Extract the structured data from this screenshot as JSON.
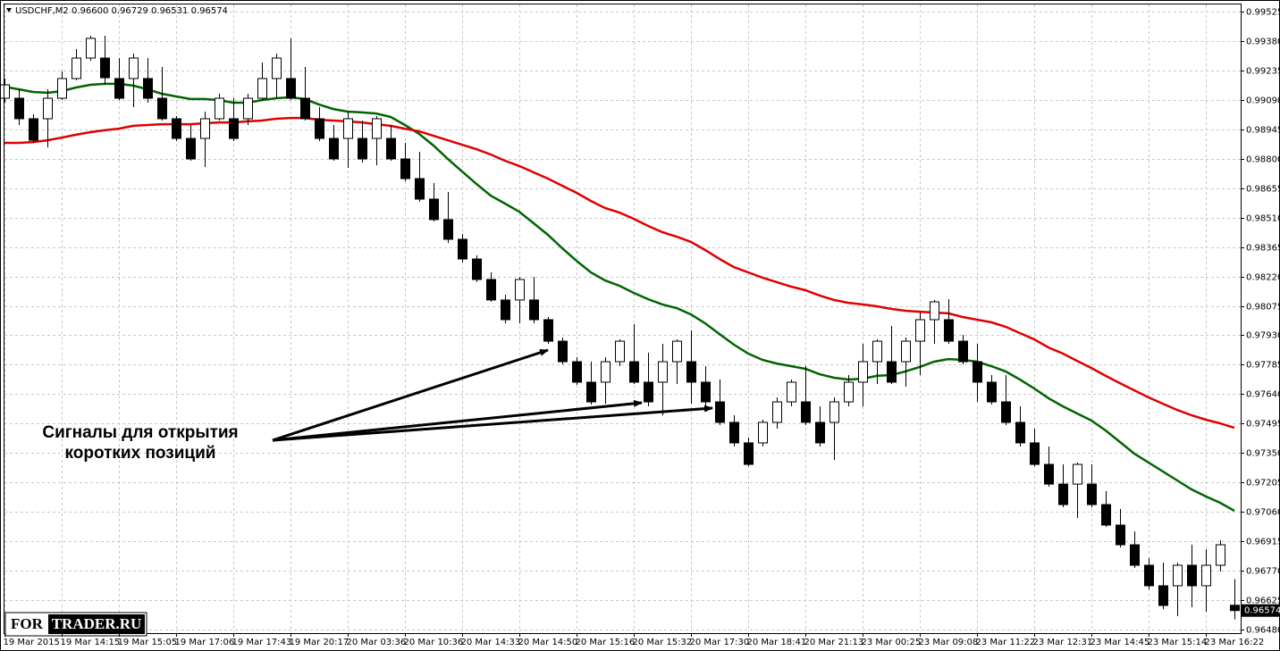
{
  "chart_data": {
    "type": "candlestick",
    "title": "USDCHF,M2  0.96600 0.96729 0.96531 0.96574",
    "categories": [
      "19 Mar 2015",
      null,
      null,
      null,
      "19 Mar 14:15",
      null,
      null,
      null,
      "19 Mar 15:05",
      null,
      null,
      null,
      "19 Mar 17:06",
      null,
      null,
      null,
      "19 Mar 17:43",
      null,
      null,
      null,
      "19 Mar 20:17",
      null,
      null,
      null,
      "20 Mar 03:36",
      null,
      null,
      null,
      "20 Mar 10:36",
      null,
      null,
      null,
      "20 Mar 14:33",
      null,
      null,
      null,
      "20 Mar 14:50",
      null,
      null,
      null,
      "20 Mar 15:16",
      null,
      null,
      null,
      "20 Mar 15:32",
      null,
      null,
      null,
      "20 Mar 17:30",
      null,
      null,
      null,
      "20 Mar 18:41",
      null,
      null,
      null,
      "20 Mar 21:13",
      null,
      null,
      null,
      "23 Mar 00:25",
      null,
      null,
      null,
      "23 Mar 09:08",
      null,
      null,
      null,
      "23 Mar 11:22",
      null,
      null,
      null,
      "23 Mar 12:31",
      null,
      null,
      null,
      "23 Mar 14:45",
      null,
      null,
      null,
      "23 Mar 15:14",
      null,
      null,
      null,
      "23 Mar 16:22",
      null,
      null
    ],
    "open": [
      0.99098,
      0.99098,
      0.98997,
      0.98997,
      0.99098,
      0.99195,
      0.99296,
      0.99296,
      0.99195,
      0.99195,
      0.99195,
      0.99098,
      0.98997,
      0.989,
      0.989,
      0.98997,
      0.98997,
      0.98997,
      0.99098,
      0.99195,
      0.99195,
      0.99098,
      0.98997,
      0.989,
      0.989,
      0.989,
      0.989,
      0.989,
      0.98799,
      0.98702,
      0.98601,
      0.985,
      0.98403,
      0.98306,
      0.98205,
      0.98104,
      0.98104,
      0.98104,
      0.98007,
      0.97901,
      0.978,
      0.97699,
      0.97699,
      0.978,
      0.978,
      0.97699,
      0.97699,
      0.978,
      0.978,
      0.97699,
      0.97602,
      0.97501,
      0.974,
      0.974,
      0.97501,
      0.97602,
      0.97602,
      0.97501,
      0.97501,
      0.97602,
      0.97699,
      0.978,
      0.978,
      0.978,
      0.97901,
      0.98007,
      0.98007,
      0.97901,
      0.978,
      0.97699,
      0.97602,
      0.97501,
      0.974,
      0.97294,
      0.97197,
      0.97197,
      0.97197,
      0.97096,
      0.96995,
      0.96898,
      0.96797,
      0.96696,
      0.96696,
      0.96797,
      0.96696,
      0.96797,
      0.966
    ],
    "high": [
      0.99195,
      0.99142,
      0.99019,
      0.99142,
      0.9923,
      0.9934,
      0.99406,
      0.99406,
      0.99296,
      0.99318,
      0.99296,
      0.99252,
      0.9901,
      0.98966,
      0.99032,
      0.9912,
      0.99098,
      0.9912,
      0.99274,
      0.99318,
      0.99393,
      0.99252,
      0.99054,
      0.98966,
      0.99032,
      0.98988,
      0.9901,
      0.98966,
      0.98878,
      0.98834,
      0.9868,
      0.98636,
      0.98429,
      0.98324,
      0.9824,
      0.9813,
      0.98218,
      0.98218,
      0.9802,
      0.97919,
      0.97822,
      0.978,
      0.97822,
      0.9791,
      0.97985,
      0.97844,
      0.97888,
      0.9791,
      0.97954,
      0.97778,
      0.97712,
      0.97536,
      0.97426,
      0.97514,
      0.97624,
      0.97712,
      0.97778,
      0.9758,
      0.97624,
      0.97734,
      0.97888,
      0.9791,
      0.97976,
      0.97919,
      0.98042,
      0.98104,
      0.98108,
      0.97932,
      0.97888,
      0.97734,
      0.97734,
      0.9758,
      0.9747,
      0.97382,
      0.97294,
      0.97303,
      0.97294,
      0.97162,
      0.97074,
      0.96964,
      0.96832,
      0.9681,
      0.9681,
      0.96898,
      0.96876,
      0.9692,
      0.96729
    ],
    "low": [
      0.99076,
      0.98966,
      0.98878,
      0.98856,
      0.99089,
      0.99186,
      0.99283,
      0.99164,
      0.99089,
      0.99054,
      0.99076,
      0.98988,
      0.98887,
      0.9879,
      0.98759,
      0.98988,
      0.98887,
      0.98966,
      0.99089,
      0.99098,
      0.99089,
      0.98988,
      0.98887,
      0.9879,
      0.98755,
      0.98781,
      0.98768,
      0.9879,
      0.98689,
      0.98588,
      0.98491,
      0.98385,
      0.98289,
      0.98192,
      0.98095,
      0.97989,
      0.97989,
      0.97989,
      0.97888,
      0.97787,
      0.97686,
      0.97589,
      0.97593,
      0.97778,
      0.9769,
      0.9758,
      0.97536,
      0.9769,
      0.97593,
      0.9758,
      0.97488,
      0.97382,
      0.97285,
      0.97382,
      0.9747,
      0.9758,
      0.97488,
      0.97382,
      0.97316,
      0.9758,
      0.9758,
      0.9769,
      0.9769,
      0.97677,
      0.97734,
      0.97888,
      0.97888,
      0.97787,
      0.97602,
      0.97589,
      0.97488,
      0.97382,
      0.97285,
      0.97184,
      0.97083,
      0.9703,
      0.97083,
      0.96986,
      0.96885,
      0.96784,
      0.96678,
      0.96581,
      0.96546,
      0.9659,
      0.96568,
      0.96766,
      0.96531
    ],
    "close": [
      0.99164,
      0.98997,
      0.98891,
      0.99098,
      0.99195,
      0.99296,
      0.99393,
      0.99199,
      0.99098,
      0.99296,
      0.99098,
      0.98997,
      0.989,
      0.98799,
      0.98997,
      0.99098,
      0.989,
      0.99098,
      0.99195,
      0.99296,
      0.99098,
      0.98997,
      0.989,
      0.98799,
      0.98997,
      0.98799,
      0.98997,
      0.98799,
      0.98702,
      0.98601,
      0.985,
      0.98403,
      0.98306,
      0.98205,
      0.98104,
      0.98007,
      0.98205,
      0.98007,
      0.97901,
      0.978,
      0.97699,
      0.97602,
      0.978,
      0.97901,
      0.97699,
      0.97602,
      0.978,
      0.97901,
      0.97699,
      0.97602,
      0.97501,
      0.974,
      0.97294,
      0.97501,
      0.97602,
      0.97699,
      0.97501,
      0.974,
      0.97602,
      0.97699,
      0.978,
      0.97901,
      0.97699,
      0.97901,
      0.98007,
      0.98095,
      0.97901,
      0.978,
      0.97699,
      0.97602,
      0.97501,
      0.974,
      0.97294,
      0.97197,
      0.97096,
      0.97294,
      0.97096,
      0.96995,
      0.96898,
      0.96797,
      0.96696,
      0.96599,
      0.96797,
      0.96696,
      0.96797,
      0.96898,
      0.96574
    ],
    "up_color": "#ffffff",
    "down_color": "#000000",
    "lines": [
      {
        "color": "#006400",
        "values": [
          0.99155,
          0.99142,
          0.99129,
          0.99125,
          0.99133,
          0.99151,
          0.99164,
          0.99169,
          0.99169,
          0.9916,
          0.99142,
          0.9912,
          0.99107,
          0.99094,
          0.99094,
          0.99089,
          0.99076,
          0.99076,
          0.99089,
          0.99098,
          0.99103,
          0.99094,
          0.99067,
          0.99045,
          0.99032,
          0.99028,
          0.99023,
          0.99006,
          0.98966,
          0.98922,
          0.98865,
          0.98799,
          0.98737,
          0.98676,
          0.98618,
          0.98579,
          0.98539,
          0.98482,
          0.98425,
          0.98359,
          0.98297,
          0.9824,
          0.982,
          0.98174,
          0.98139,
          0.98108,
          0.98082,
          0.98064,
          0.98033,
          0.97989,
          0.97936,
          0.97884,
          0.9784,
          0.97809,
          0.97791,
          0.97778,
          0.97765,
          0.97738,
          0.97721,
          0.97712,
          0.97716,
          0.9773,
          0.97734,
          0.97752,
          0.97774,
          0.978,
          0.97813,
          0.97809,
          0.978,
          0.97778,
          0.97752,
          0.97712,
          0.97668,
          0.9762,
          0.9758,
          0.97545,
          0.9751,
          0.97461,
          0.97404,
          0.97347,
          0.97303,
          0.97259,
          0.97215,
          0.97171,
          0.97136,
          0.97105,
          0.97065
        ]
      },
      {
        "color": "#e00000",
        "values": [
          0.98878,
          0.98878,
          0.98882,
          0.98891,
          0.98904,
          0.98918,
          0.98931,
          0.9894,
          0.98948,
          0.98962,
          0.98966,
          0.9897,
          0.9897,
          0.9897,
          0.98975,
          0.98979,
          0.98979,
          0.98984,
          0.98988,
          0.98997,
          0.99001,
          0.99001,
          0.98992,
          0.98988,
          0.98984,
          0.98979,
          0.9897,
          0.98962,
          0.98948,
          0.98935,
          0.98913,
          0.98891,
          0.98869,
          0.98847,
          0.98821,
          0.9879,
          0.98764,
          0.98733,
          0.98702,
          0.98667,
          0.98632,
          0.98592,
          0.98557,
          0.98535,
          0.98504,
          0.98469,
          0.98438,
          0.98416,
          0.9839,
          0.9835,
          0.98306,
          0.98266,
          0.9824,
          0.98214,
          0.98192,
          0.9817,
          0.98152,
          0.98126,
          0.98104,
          0.9809,
          0.98082,
          0.98073,
          0.9806,
          0.98051,
          0.98046,
          0.98042,
          0.98038,
          0.9802,
          0.98007,
          0.97994,
          0.97972,
          0.97941,
          0.9791,
          0.9787,
          0.9784,
          0.97804,
          0.97769,
          0.9773,
          0.97694,
          0.97659,
          0.97624,
          0.97593,
          0.97562,
          0.97536,
          0.97514,
          0.97496,
          0.97474
        ]
      }
    ],
    "ylim": [
      0.96467,
      0.9956
    ],
    "yticks": [
      0.99525,
      {
        "value": 0.9938,
        "label": "0.99380"
      },
      0.99235,
      {
        "value": 0.9909,
        "label": "0.99090"
      },
      0.98945,
      {
        "value": 0.988,
        "label": "0.98800"
      },
      0.98655,
      {
        "value": 0.9851,
        "label": "0.98510"
      },
      0.98365,
      {
        "value": 0.9822,
        "label": "0.98220"
      },
      0.98075,
      {
        "value": 0.9793,
        "label": "0.97930"
      },
      0.97785,
      {
        "value": 0.9764,
        "label": "0.97640"
      },
      0.97495,
      {
        "value": 0.9735,
        "label": "0.97350"
      },
      0.97205,
      {
        "value": 0.9706,
        "label": "0.97060"
      },
      0.96915,
      {
        "value": 0.9677,
        "label": "0.96770"
      },
      0.96625,
      {
        "value": 0.9648,
        "label": "0.96480"
      }
    ],
    "grid": true,
    "annotation": [
      "Сигналы для открытия",
      "коротких позиций"
    ],
    "watermark": [
      "FOR",
      "TRADER.RU"
    ]
  }
}
